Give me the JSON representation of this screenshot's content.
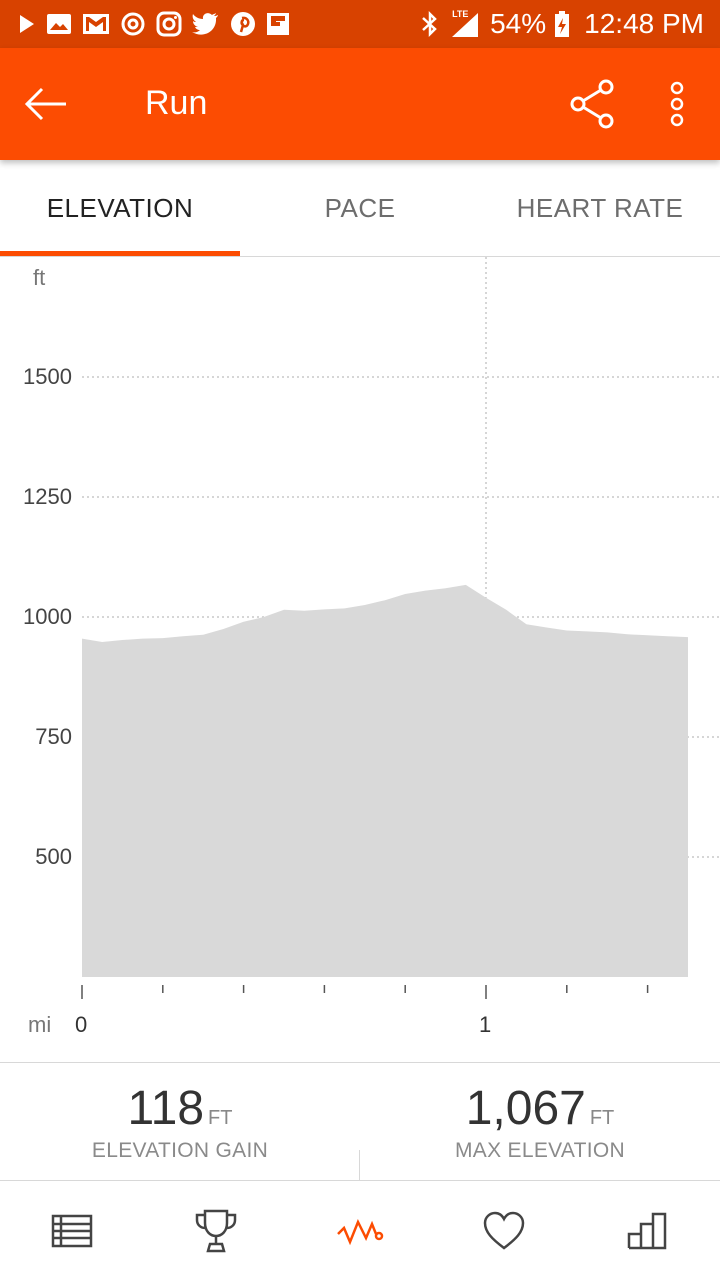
{
  "status_bar": {
    "battery": "54%",
    "time": "12:48 PM",
    "network": "LTE",
    "left_icons": [
      "play-icon",
      "gallery-icon",
      "gmail-icon",
      "sync-icon",
      "instagram-icon",
      "twitter-icon",
      "pinterest-icon",
      "flipboard-icon"
    ],
    "right_icons": [
      "bluetooth-icon",
      "signal-icon",
      "battery-icon"
    ]
  },
  "app_bar": {
    "title": "Run",
    "icons": [
      "back-arrow-icon",
      "share-icon",
      "more-vert-icon"
    ],
    "color": "#fc4c02"
  },
  "tabs": [
    {
      "label": "ELEVATION",
      "active": true
    },
    {
      "label": "PACE",
      "active": false
    },
    {
      "label": "HEART RATE",
      "active": false
    }
  ],
  "chart_data": {
    "type": "area",
    "ylabel": "ft",
    "xlabel": "mi",
    "y_ticks": [
      "1500",
      "1250",
      "1000",
      "750",
      "500"
    ],
    "x_ticks": [
      "0",
      "1"
    ],
    "ylim": [
      250,
      1750
    ],
    "xlim": [
      0,
      1.5
    ],
    "grid": true,
    "fill_color": "#d9d9d9",
    "x": [
      0,
      0.05,
      0.1,
      0.15,
      0.2,
      0.25,
      0.3,
      0.35,
      0.4,
      0.45,
      0.5,
      0.55,
      0.6,
      0.65,
      0.7,
      0.75,
      0.8,
      0.85,
      0.9,
      0.95,
      1.0,
      1.05,
      1.1,
      1.15,
      1.2,
      1.25,
      1.3,
      1.35,
      1.4,
      1.45,
      1.5
    ],
    "y": [
      955,
      948,
      952,
      955,
      956,
      960,
      963,
      975,
      990,
      1000,
      1015,
      1013,
      1016,
      1018,
      1025,
      1035,
      1048,
      1055,
      1060,
      1067,
      1040,
      1015,
      985,
      978,
      972,
      970,
      968,
      964,
      962,
      960,
      958
    ]
  },
  "stats": [
    {
      "value": "118",
      "unit": "FT",
      "label": "ELEVATION GAIN"
    },
    {
      "value": "1,067",
      "unit": "FT",
      "label": "MAX ELEVATION"
    }
  ],
  "bottom_nav": [
    {
      "name": "feed",
      "icon": "list-icon",
      "active": false
    },
    {
      "name": "challenges",
      "icon": "trophy-icon",
      "active": false
    },
    {
      "name": "activity",
      "icon": "activity-icon",
      "active": true
    },
    {
      "name": "health",
      "icon": "heart-icon",
      "active": false
    },
    {
      "name": "stats",
      "icon": "bar-chart-icon",
      "active": false
    }
  ]
}
